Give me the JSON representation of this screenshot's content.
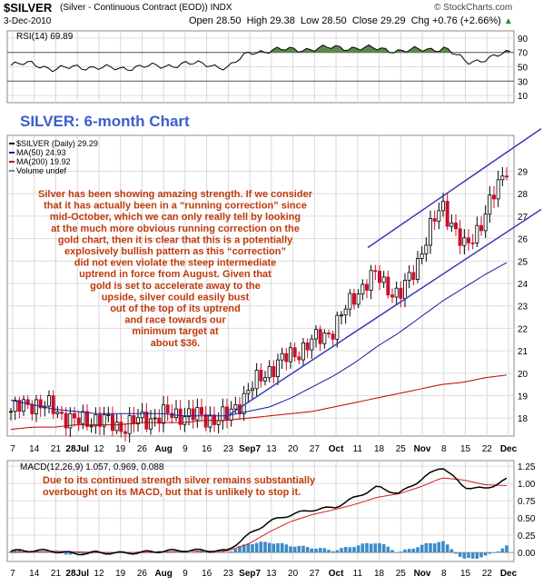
{
  "header": {
    "ticker": "$SILVER",
    "name": "(Silver - Continuous Contract (EOD))",
    "exchange": "INDX",
    "date": "3-Dec-2010",
    "open": "Open 28.50",
    "high": "High 29.38",
    "low": "Low 28.50",
    "close": "Close 29.29",
    "chg": "Chg +0.76 (+2.66%)",
    "chg_arrow": "▲",
    "watermark": "© StockCharts.com"
  },
  "rsi": {
    "label": "RSI(14) 69.89",
    "ticks": [
      {
        "v": 90,
        "t": "90"
      },
      {
        "v": 70,
        "t": "70"
      },
      {
        "v": 50,
        "t": "50"
      },
      {
        "v": 30,
        "t": "30"
      },
      {
        "v": 10,
        "t": "10"
      }
    ],
    "ylim": [
      0,
      100
    ]
  },
  "price": {
    "legend": [
      "$SILVER (Daily) 29.29",
      "MA(50) 24.93",
      "MA(200) 19.92",
      "Volume undef"
    ],
    "legend_colors": [
      "#000000",
      "#1a1aa0",
      "#c00000",
      "#888888"
    ],
    "ticks": [
      18,
      19,
      20,
      21,
      22,
      23,
      24,
      25,
      26,
      27,
      28,
      29
    ],
    "ylim": [
      17.2,
      30.6
    ]
  },
  "macd": {
    "label": "MACD(12,26,9) 1.057, 0.969, 0.088",
    "label_colors": [
      "#000000",
      "#c00000",
      "#1a6fb5"
    ],
    "ticks": [
      {
        "v": 1.25,
        "t": "1.25"
      },
      {
        "v": 1.0,
        "t": "1.00"
      },
      {
        "v": 0.75,
        "t": "0.75"
      },
      {
        "v": 0.5,
        "t": "0.50"
      },
      {
        "v": 0.25,
        "t": "0.25"
      },
      {
        "v": 0.0,
        "t": "0.00"
      }
    ],
    "ylim": [
      -0.13,
      1.33
    ]
  },
  "xaxis": {
    "labels": [
      "7",
      "14",
      "21",
      "28Jul",
      "12",
      "19",
      "26",
      "Aug",
      "9",
      "16",
      "23",
      "Sep7",
      "13",
      "20",
      "27",
      "Oct",
      "11",
      "18",
      "25",
      "Nov",
      "8",
      "15",
      "22",
      "Dec"
    ],
    "bold": [
      "Jul",
      "Aug",
      "Sep",
      "Oct",
      "Nov",
      "Dec"
    ]
  },
  "annotations": {
    "title": "SILVER: 6-month Chart",
    "title_color": "#3a5fcd",
    "main": [
      "Silver has been showing amazing strength. If we consider",
      "that it has actually been in a “running correction” since",
      "mid-October, which we can only really tell by looking",
      "at the much more obvious running correction on the",
      "gold chart, then it is clear that this is a potentially",
      "explosively bullish pattern as this “correction”",
      "did not even violate the steep intermediate",
      "uptrend in force from August. Given that",
      "gold is set to accelerate away to the",
      "upside, silver could easily bust",
      "out of the top of its uptrend",
      "and race towards our",
      "minimum target at",
      "about $36."
    ],
    "macd_note": [
      "Due to its continued strength silver remains substantially",
      "overbought on its MACD, but that is unlikely to stop it."
    ],
    "text_color": "#c0390b"
  },
  "chart_data": [
    {
      "type": "line",
      "name": "RSI(14)",
      "x": [
        "7",
        "14",
        "21",
        "28Jul",
        "12",
        "19",
        "26",
        "Aug",
        "9",
        "16",
        "23",
        "Sep7",
        "13",
        "20",
        "27",
        "Oct",
        "11",
        "18",
        "25",
        "Nov",
        "8",
        "15",
        "22",
        "Dec"
      ],
      "values": [
        52,
        55,
        46,
        50,
        49,
        47,
        51,
        50,
        55,
        53,
        49,
        70,
        73,
        74,
        75,
        77,
        76,
        75,
        72,
        74,
        76,
        56,
        62,
        70
      ],
      "ylim": [
        0,
        100
      ]
    },
    {
      "type": "line",
      "name": "$SILVER (Daily)",
      "x": [
        "7",
        "14",
        "21",
        "28Jul",
        "12",
        "19",
        "26",
        "Aug",
        "9",
        "16",
        "23",
        "Sep7",
        "13",
        "20",
        "27",
        "Oct",
        "11",
        "18",
        "25",
        "Nov",
        "8",
        "15",
        "22",
        "Dec"
      ],
      "series": [
        {
          "name": "$SILVER (Daily)",
          "values": [
            18.3,
            18.7,
            18.4,
            17.8,
            18.0,
            17.6,
            17.9,
            18.1,
            18.2,
            18.0,
            18.0,
            19.2,
            20.2,
            20.8,
            21.4,
            22.0,
            23.6,
            24.4,
            23.3,
            25.3,
            27.6,
            25.5,
            27.0,
            29.29
          ]
        },
        {
          "name": "MA(50)",
          "values": [
            18.8,
            18.6,
            18.4,
            18.3,
            18.2,
            18.2,
            18.2,
            18.2,
            18.1,
            18.1,
            18.1,
            18.3,
            18.5,
            18.9,
            19.4,
            19.9,
            20.5,
            21.2,
            21.8,
            22.5,
            23.2,
            23.8,
            24.4,
            24.93
          ]
        },
        {
          "name": "MA(200)",
          "values": [
            17.5,
            17.6,
            17.6,
            17.7,
            17.7,
            17.7,
            17.8,
            17.8,
            17.8,
            17.9,
            17.9,
            18.0,
            18.1,
            18.2,
            18.3,
            18.5,
            18.7,
            18.9,
            19.1,
            19.3,
            19.5,
            19.6,
            19.8,
            19.92
          ]
        }
      ],
      "ylim": [
        17.2,
        30.6
      ]
    },
    {
      "type": "line",
      "name": "MACD(12,26,9)",
      "x": [
        "7",
        "14",
        "21",
        "28Jul",
        "12",
        "19",
        "26",
        "Aug",
        "9",
        "16",
        "23",
        "Sep7",
        "13",
        "20",
        "27",
        "Oct",
        "11",
        "18",
        "25",
        "Nov",
        "8",
        "15",
        "22",
        "Dec"
      ],
      "series": [
        {
          "name": "MACD",
          "values": [
            0.02,
            0.03,
            0.02,
            -0.02,
            0.0,
            -0.01,
            0.0,
            0.02,
            0.03,
            0.03,
            0.02,
            0.25,
            0.45,
            0.55,
            0.62,
            0.65,
            0.8,
            0.95,
            0.85,
            1.05,
            1.25,
            0.95,
            0.92,
            1.057
          ]
        },
        {
          "name": "Signal",
          "values": [
            0.0,
            0.01,
            0.02,
            0.01,
            0.0,
            0.0,
            0.0,
            0.01,
            0.02,
            0.02,
            0.02,
            0.12,
            0.3,
            0.45,
            0.55,
            0.62,
            0.7,
            0.8,
            0.85,
            0.95,
            1.08,
            1.05,
            0.98,
            0.969
          ]
        },
        {
          "name": "Histogram",
          "values": [
            0.02,
            0.02,
            0.0,
            -0.03,
            0.0,
            -0.01,
            0.0,
            0.01,
            0.01,
            0.01,
            0.0,
            0.13,
            0.15,
            0.1,
            0.07,
            0.03,
            0.1,
            0.15,
            0.0,
            0.1,
            0.17,
            -0.1,
            -0.06,
            0.088
          ]
        }
      ],
      "ylim": [
        -0.13,
        1.33
      ]
    }
  ],
  "colors": {
    "price_up": "#000000",
    "price_down": "#c8102e",
    "ma50": "#1a1aa0",
    "ma200": "#c00000",
    "channel": "#3a3ab8",
    "rsi_fill": "#5a8a4a",
    "macd_line": "#000000",
    "macd_signal": "#d02020",
    "macd_hist": "#3b8bc8"
  }
}
